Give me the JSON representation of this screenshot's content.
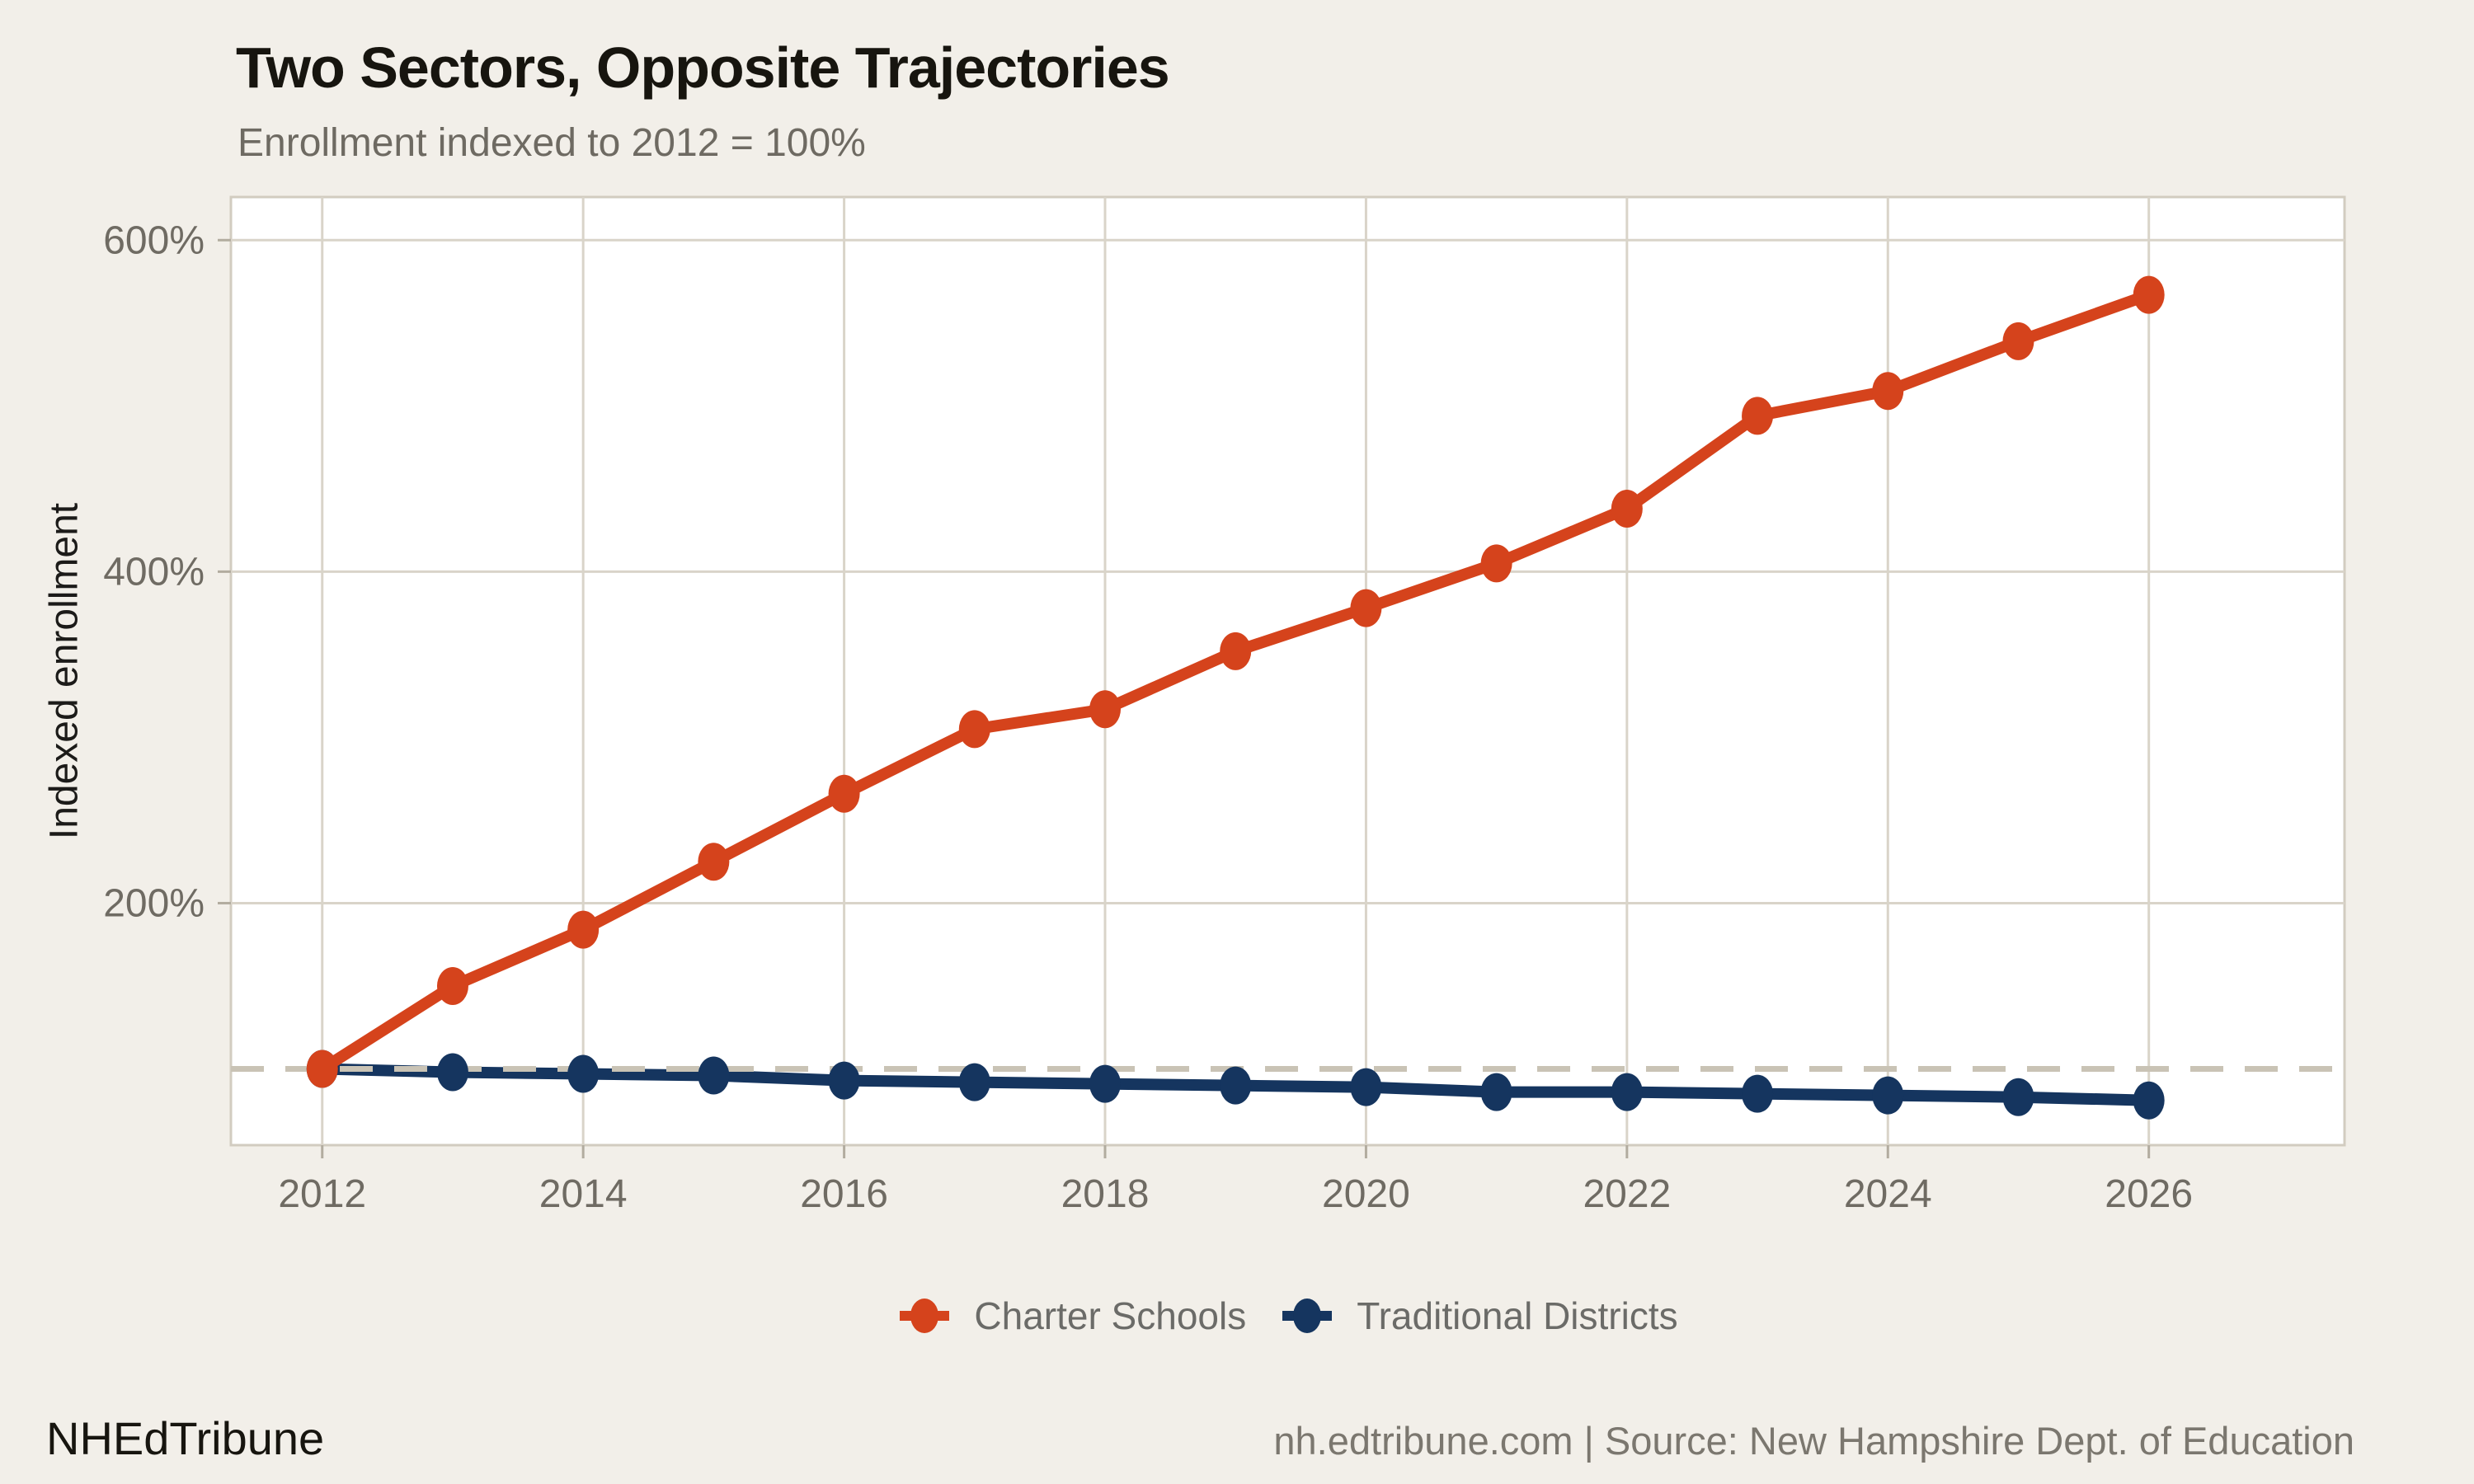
{
  "footer": {
    "brand": "NHEdTribune",
    "source": "nh.edtribune.com | Source: New Hampshire Dept. of Education"
  },
  "chart_data": {
    "type": "line",
    "title": "Two Sectors, Opposite Trajectories",
    "subtitle": "Enrollment indexed to 2012 = 100%",
    "ylabel": "Indexed enrollment",
    "xlabel": "",
    "x": [
      2012,
      2013,
      2014,
      2015,
      2016,
      2017,
      2018,
      2019,
      2020,
      2021,
      2022,
      2023,
      2024,
      2025,
      2026
    ],
    "series": [
      {
        "name": "Charter Schools",
        "color": "#D5431C",
        "values": [
          100,
          150,
          184,
          225,
          266,
          305,
          317,
          352,
          378,
          405,
          438,
          494,
          509,
          539,
          567
        ]
      },
      {
        "name": "Traditional Districts",
        "color": "#15355F",
        "values": [
          100,
          98,
          97,
          96,
          93,
          92,
          91,
          90,
          89,
          86,
          86,
          85,
          84,
          83,
          81
        ]
      }
    ],
    "x_ticks": [
      2012,
      2014,
      2016,
      2018,
      2020,
      2022,
      2024,
      2026
    ],
    "y_ticks": [
      {
        "value": 200,
        "label": "200%"
      },
      {
        "value": 400,
        "label": "400%"
      },
      {
        "value": 600,
        "label": "600%"
      }
    ],
    "reference_line": {
      "value": 100,
      "style": "dashed",
      "meaning": "2012 baseline = 100%"
    },
    "xlim": [
      2011.3,
      2027.5
    ],
    "ylim": [
      54,
      626
    ],
    "grid": true,
    "legend_position": "bottom",
    "colors": {
      "background": "#F2EFE9",
      "panel": "#FFFFFF",
      "grid": "#D9D4C9",
      "panel_border": "#D2CCC0",
      "axis_tick": "#B2AC9F",
      "reference": "#C9C3B5",
      "tick_label": "#6F6B63"
    }
  }
}
